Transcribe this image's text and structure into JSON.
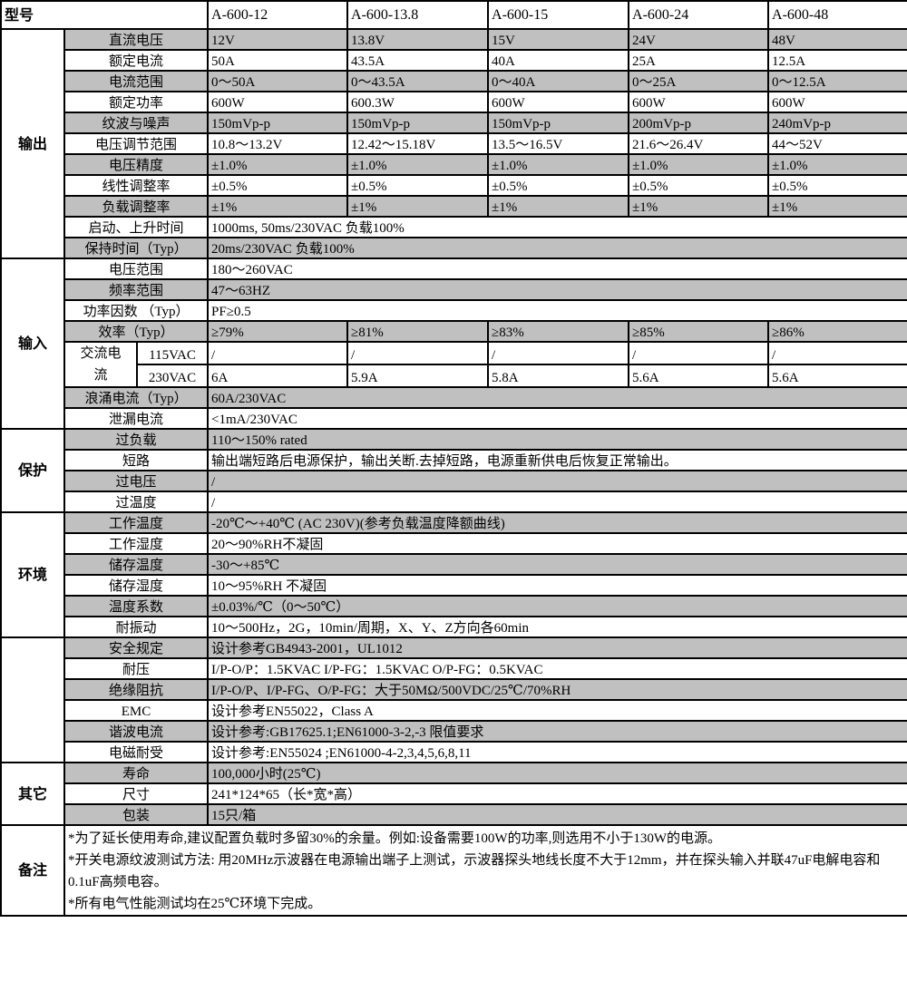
{
  "header": {
    "label": "型号",
    "models": [
      "A-600-12",
      "A-600-13.8",
      "A-600-15",
      "A-600-24",
      "A-600-48"
    ]
  },
  "colors": {
    "gray_row": "#c0c0c0",
    "border": "#000000"
  },
  "sections": [
    {
      "name": "输出",
      "rows": [
        {
          "label": "直流电压",
          "gray": true,
          "values": [
            "12V",
            "13.8V",
            "15V",
            "24V",
            "48V"
          ]
        },
        {
          "label": "额定电流",
          "gray": false,
          "values": [
            "50A",
            "43.5A",
            "40A",
            "25A",
            "12.5A"
          ]
        },
        {
          "label": "电流范围",
          "gray": true,
          "values": [
            "0～50A",
            "0～43.5A",
            "0～40A",
            "0～25A",
            "0～12.5A"
          ]
        },
        {
          "label": "额定功率",
          "gray": false,
          "values": [
            "600W",
            "600.3W",
            "600W",
            "600W",
            "600W"
          ]
        },
        {
          "label": "纹波与噪声",
          "gray": true,
          "values": [
            "150mVp-p",
            "150mVp-p",
            "150mVp-p",
            "200mVp-p",
            "240mVp-p"
          ]
        },
        {
          "label": "电压调节范围",
          "gray": false,
          "values": [
            "10.8～13.2V",
            "12.42～15.18V",
            "13.5～16.5V",
            "21.6～26.4V",
            "44～52V"
          ]
        },
        {
          "label": "电压精度",
          "gray": true,
          "values": [
            "±1.0%",
            "±1.0%",
            "±1.0%",
            "±1.0%",
            "±1.0%"
          ]
        },
        {
          "label": "线性调整率",
          "gray": false,
          "values": [
            "±0.5%",
            "±0.5%",
            "±0.5%",
            "±0.5%",
            "±0.5%"
          ]
        },
        {
          "label": "负载调整率",
          "gray": true,
          "values": [
            "±1%",
            "±1%",
            "±1%",
            "±1%",
            "±1%"
          ]
        },
        {
          "label": "启动、上升时间",
          "gray": false,
          "value": "1000ms, 50ms/230VAC 负载100%"
        },
        {
          "label": "保持时间（Typ）",
          "gray": true,
          "value": "20ms/230VAC 负载100%"
        }
      ]
    },
    {
      "name": "输入",
      "rows": [
        {
          "label": "电压范围",
          "gray": false,
          "value": "180～260VAC"
        },
        {
          "label": "频率范围",
          "gray": true,
          "value": "47～63HZ"
        },
        {
          "label": "功率因数 （Typ）",
          "gray": false,
          "value": "PF≥0.5"
        },
        {
          "label": "效率（Typ）",
          "gray": true,
          "values": [
            "≥79%",
            "≥81%",
            "≥83%",
            "≥85%",
            "≥86%"
          ]
        },
        {
          "group": "交流电流",
          "sublabel": "115VAC",
          "gray": false,
          "values": [
            "/",
            "/",
            "/",
            "/",
            "/"
          ]
        },
        {
          "group": "交流电流",
          "sublabel": "230VAC",
          "gray": false,
          "values": [
            "6A",
            "5.9A",
            "5.8A",
            "5.6A",
            "5.6A"
          ]
        },
        {
          "label": "浪涌电流（Typ）",
          "gray": true,
          "value": "60A/230VAC"
        },
        {
          "label": "泄漏电流",
          "gray": false,
          "value": "<1mA/230VAC"
        }
      ]
    },
    {
      "name": "保护",
      "rows": [
        {
          "label": "过负载",
          "gray": true,
          "value": "110～150% rated"
        },
        {
          "label": "短路",
          "gray": false,
          "value": "输出端短路后电源保护，输出关断.去掉短路，电源重新供电后恢复正常输出。"
        },
        {
          "label": "过电压",
          "gray": true,
          "value": "/"
        },
        {
          "label": "过温度",
          "gray": false,
          "value": "/"
        }
      ]
    },
    {
      "name": "环境",
      "rows": [
        {
          "label": "工作温度",
          "gray": true,
          "value": "-20℃～+40℃ (AC 230V)(参考负载温度降额曲线)"
        },
        {
          "label": "工作湿度",
          "gray": false,
          "value": "20～90%RH不凝固"
        },
        {
          "label": "储存温度",
          "gray": true,
          "value": "-30～+85℃"
        },
        {
          "label": "储存湿度",
          "gray": false,
          "value": "10～95%RH 不凝固"
        },
        {
          "label": "温度系数",
          "gray": true,
          "value": "±0.03%/℃（0～50℃）"
        },
        {
          "label": "耐振动",
          "gray": false,
          "value": "10～500Hz，2G，10min/周期，X、Y、Z方向各60min"
        }
      ]
    },
    {
      "name": "",
      "rows": [
        {
          "label": "安全规定",
          "gray": true,
          "value": "设计参考GB4943-2001，UL1012"
        },
        {
          "label": "耐压",
          "gray": false,
          "value": "I/P-O/P：1.5KVAC I/P-FG：1.5KVAC    O/P-FG：0.5KVAC"
        },
        {
          "label": "绝缘阻抗",
          "gray": true,
          "value": "I/P-O/P、I/P-FG、O/P-FG：大于50MΩ/500VDC/25℃/70%RH"
        },
        {
          "label": "EMC",
          "gray": false,
          "value": "设计参考EN55022，Class A"
        },
        {
          "label": "谐波电流",
          "gray": true,
          "value": "设计参考:GB17625.1;EN61000-3-2,-3 限值要求"
        },
        {
          "label": "电磁耐受",
          "gray": false,
          "value": "设计参考:EN55024 ;EN61000-4-2,3,4,5,6,8,11"
        }
      ]
    },
    {
      "name": "其它",
      "rows": [
        {
          "label": "寿命",
          "gray": true,
          "value": "100,000小时(25℃)"
        },
        {
          "label": "尺寸",
          "gray": false,
          "value": "241*124*65（长*宽*高）"
        },
        {
          "label": "包装",
          "gray": true,
          "value": "15只/箱"
        }
      ]
    }
  ],
  "notes": {
    "label": "备注",
    "lines": [
      "*为了延长使用寿命,建议配置负载时多留30%的余量。例如:设备需要100W的功率,则选用不小于130W的电源。",
      "*开关电源纹波测试方法: 用20MHz示波器在电源输出端子上测试，示波器探头地线长度不大于12mm，并在探头输入并联47uF电解电容和0.1uF高频电容。",
      "*所有电气性能测试均在25℃环境下完成。"
    ]
  }
}
